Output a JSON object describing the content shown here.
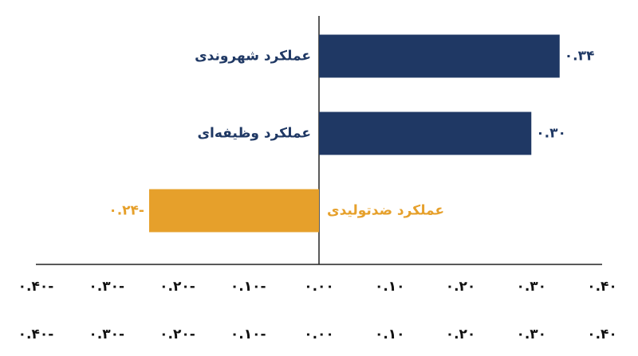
{
  "chart_data": {
    "type": "bar",
    "orientation": "horizontal",
    "categories": [
      "عملکرد شهروندی",
      "عملکرد وظیفه‌ای",
      "عملکرد ضدتولیدی"
    ],
    "values": [
      0.34,
      0.3,
      -0.24
    ],
    "value_labels": [
      "۰.۳۴",
      "۰.۳۰",
      "۰.۲۴-"
    ],
    "colors": [
      "#1f3864",
      "#1f3864",
      "#e6a02b"
    ],
    "xlim": [
      -0.4,
      0.4
    ],
    "xticks": [
      {
        "value": -0.4,
        "label": "۰.۴۰-"
      },
      {
        "value": -0.3,
        "label": "۰.۳۰-"
      },
      {
        "value": -0.2,
        "label": "۰.۲۰-"
      },
      {
        "value": -0.1,
        "label": "۰.۱۰-"
      },
      {
        "value": 0,
        "label": "۰.۰۰"
      },
      {
        "value": 0.1,
        "label": "۰.۱۰"
      },
      {
        "value": 0.2,
        "label": "۰.۲۰"
      },
      {
        "value": 0.3,
        "label": "۰.۳۰"
      },
      {
        "value": 0.4,
        "label": "۰.۴۰"
      }
    ],
    "grid": false
  }
}
